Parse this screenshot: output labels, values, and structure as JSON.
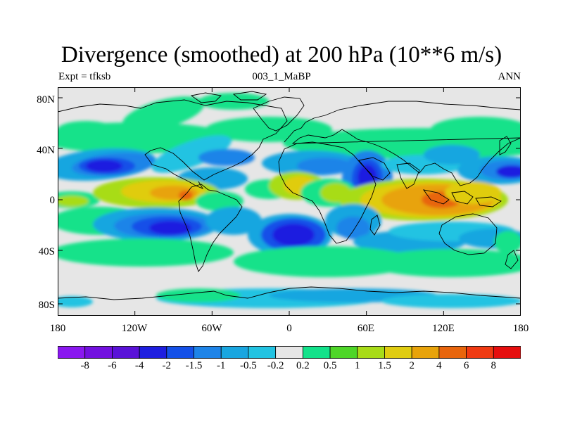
{
  "title": "Divergence (smoothed) at 200 hPa (10**6 m/s)",
  "subtitle_left": "Expt = tfksb",
  "subtitle_center": "003_1_MaBP",
  "subtitle_right": "ANN",
  "chart_data": {
    "type": "heatmap",
    "map_projection": "cylindrical-equidistant",
    "lat_range": [
      -90,
      90
    ],
    "lon_range": [
      -180,
      180
    ],
    "lat_ticks": [
      "80N",
      "40N",
      "0",
      "40S",
      "80S"
    ],
    "lon_ticks": [
      "180",
      "120W",
      "60W",
      "0",
      "60E",
      "120E",
      "180"
    ],
    "colorbar": {
      "labels": [
        "-8",
        "-6",
        "-4",
        "-2",
        "-1.5",
        "-1",
        "-0.5",
        "-0.2",
        "0.2",
        "0.5",
        "1",
        "1.5",
        "2",
        "4",
        "6",
        "8"
      ],
      "colors": [
        "#8a18f0",
        "#7310e0",
        "#5a12d8",
        "#1e1ee0",
        "#1450e8",
        "#1e84e8",
        "#19a6e0",
        "#22c3e2",
        "#e6e6e6",
        "#12e28a",
        "#4ed628",
        "#a8dc18",
        "#e0cc10",
        "#e8a30a",
        "#e8650c",
        "#f03a12",
        "#e60e0e"
      ]
    },
    "features": [
      {
        "name": "equatorial-divergence-africa",
        "lon": 30,
        "lat": 0,
        "value": 3
      },
      {
        "name": "equatorial-divergence-maritime-continent",
        "lon": 110,
        "lat": 0,
        "value": 3
      },
      {
        "name": "equatorial-divergence-south-america",
        "lon": -70,
        "lat": 0,
        "value": 2
      },
      {
        "name": "convergence-south-atlantic",
        "lon": -15,
        "lat": -20,
        "value": -2
      },
      {
        "name": "convergence-south-pacific",
        "lon": -100,
        "lat": -25,
        "value": -2
      },
      {
        "name": "convergence-north-pacific",
        "lon": -150,
        "lat": 25,
        "value": -2
      }
    ]
  }
}
